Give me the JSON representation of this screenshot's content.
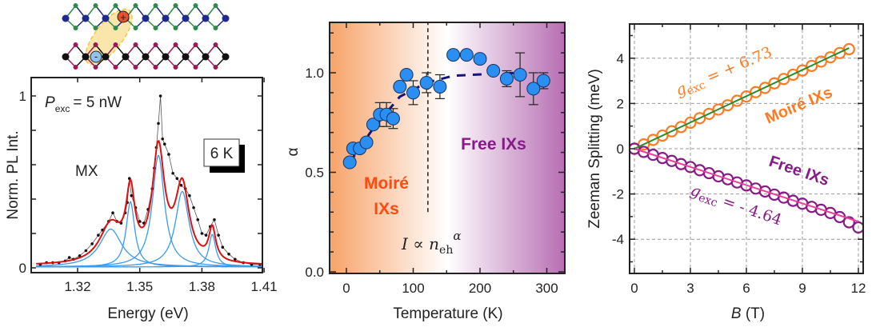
{
  "colors": {
    "metal_top": "#1f2a8c",
    "chalcogen_top": "#2e8b4a",
    "metal_bottom": "#111111",
    "chalcogen_bottom": "#9a1a5a",
    "exciton_ellipse": "#f5c842",
    "hole": "#e8502a",
    "electron": "#8fc3ea",
    "pl_data": "#111111",
    "pl_fit": "#e01010",
    "pl_components": "#3a9af0",
    "moire_region": "#f7a36a",
    "free_region": "#b76fb3",
    "alpha_points": "#2a8ff0",
    "alpha_fit": "#151580",
    "moire_label": "#ff4a10",
    "free_label": "#861a86",
    "moire_zeeman": "#ff7a20",
    "moire_fit": "#2a8a2a",
    "free_zeeman": "#861a86",
    "free_fit": "#e8409a"
  },
  "schematic": {
    "hole_symbol": "+",
    "electron_symbol": "-"
  },
  "chart_data": [
    {
      "type": "line",
      "ylabel": "Norm. PL Int.",
      "xlabel": "Energy (eV)",
      "xlim": [
        1.3,
        1.41
      ],
      "ylim": [
        0,
        1.05
      ],
      "xticks": [
        "1.32",
        "1.35",
        "1.38",
        "1.41"
      ],
      "yticks": [
        "0",
        "1"
      ],
      "annotations": {
        "power_symbol": "P",
        "power_sub": "exc",
        "power_value": "= 5 nW",
        "peak_label": "MX",
        "temperature_badge": "6 K"
      },
      "measured": {
        "x": [
          1.302,
          1.305,
          1.308,
          1.311,
          1.314,
          1.316,
          1.318,
          1.321,
          1.324,
          1.327,
          1.33,
          1.332,
          1.335,
          1.337,
          1.339,
          1.341,
          1.343,
          1.344,
          1.345,
          1.346,
          1.348,
          1.35,
          1.352,
          1.354,
          1.356,
          1.357,
          1.358,
          1.359,
          1.36,
          1.361,
          1.362,
          1.364,
          1.366,
          1.368,
          1.37,
          1.372,
          1.374,
          1.376,
          1.378,
          1.38,
          1.382,
          1.384,
          1.386,
          1.388,
          1.39,
          1.393,
          1.396,
          1.4,
          1.404,
          1.408
        ],
        "y": [
          0.02,
          0.03,
          0.03,
          0.03,
          0.04,
          0.06,
          0.05,
          0.07,
          0.1,
          0.14,
          0.19,
          0.22,
          0.27,
          0.32,
          0.27,
          0.26,
          0.32,
          0.38,
          0.52,
          0.42,
          0.35,
          0.27,
          0.26,
          0.34,
          0.46,
          0.58,
          0.7,
          0.84,
          1.0,
          0.75,
          0.72,
          0.66,
          0.55,
          0.52,
          0.48,
          0.46,
          0.42,
          0.35,
          0.28,
          0.2,
          0.19,
          0.24,
          0.28,
          0.19,
          0.12,
          0.08,
          0.05,
          0.03,
          0.02,
          0.02
        ]
      },
      "fit_components": [
        {
          "center": 1.336,
          "amplitude": 0.22,
          "hwhm": 0.0065
        },
        {
          "center": 1.3455,
          "amplitude": 0.38,
          "hwhm": 0.0025
        },
        {
          "center": 1.359,
          "amplitude": 0.65,
          "hwhm": 0.0035
        },
        {
          "center": 1.3705,
          "amplitude": 0.44,
          "hwhm": 0.004
        },
        {
          "center": 1.385,
          "amplitude": 0.19,
          "hwhm": 0.002
        }
      ]
    },
    {
      "type": "scatter",
      "ylabel": "α",
      "xlabel": "Temperature (K)",
      "xlim": [
        -25,
        327
      ],
      "ylim": [
        0,
        1.25
      ],
      "xticks": [
        "0",
        "100",
        "200",
        "300"
      ],
      "yticks": [
        "0.0",
        "0.5",
        "1.0"
      ],
      "regions": {
        "moire_line1": "Moiré",
        "moire_line2": "IXs",
        "free": "Free IXs",
        "boundary_T": 122
      },
      "formula": {
        "lhs": "I",
        "prop": " ∝ ",
        "n": "n",
        "sub": "eh",
        "sup": "α"
      },
      "points": {
        "x": [
          5,
          10,
          20,
          30,
          40,
          50,
          60,
          70,
          80,
          90,
          100,
          120,
          140,
          160,
          180,
          200,
          220,
          240,
          260,
          280,
          295
        ],
        "y": [
          0.55,
          0.62,
          0.62,
          0.65,
          0.74,
          0.79,
          0.79,
          0.77,
          0.93,
          0.99,
          0.9,
          0.95,
          0.93,
          1.09,
          1.09,
          1.07,
          1.01,
          0.97,
          0.99,
          0.92,
          0.96
        ],
        "err": [
          0.02,
          0.02,
          0.02,
          0.02,
          0.02,
          0.06,
          0.06,
          0.05,
          0.02,
          0.02,
          0.06,
          0.05,
          0.06,
          0.01,
          0.01,
          0.01,
          0.01,
          0.04,
          0.11,
          0.08,
          0.04
        ]
      },
      "fit": {
        "x": [
          5,
          40,
          80,
          120,
          160,
          220,
          265
        ],
        "y": [
          0.55,
          0.72,
          0.88,
          0.95,
          0.985,
          0.995,
          1.0
        ]
      }
    },
    {
      "type": "scatter",
      "ylabel": "Zeeman Splitting (meV)",
      "xlabel_symbol": "B",
      "xlabel_unit": " (T)",
      "xlim": [
        -0.25,
        12.25
      ],
      "ylim": [
        -5.5,
        5.5
      ],
      "grid": true,
      "xticks": [
        "0",
        "3",
        "6",
        "9",
        "12"
      ],
      "yticks": [
        "-4",
        "-2",
        "0",
        "2",
        "4"
      ],
      "series": [
        {
          "name": "Moiré IXs",
          "g_symbol": "g",
          "g_sub": "exc",
          "g_text": " = + 6.73",
          "x": [
            0,
            0.5,
            1,
            1.5,
            2,
            2.5,
            3,
            3.5,
            4,
            4.5,
            5,
            5.5,
            6,
            6.5,
            7,
            7.5,
            8,
            8.5,
            9,
            9.5,
            10,
            10.5,
            11,
            11.5
          ],
          "y": [
            0,
            0.19,
            0.39,
            0.58,
            0.77,
            0.96,
            1.15,
            1.35,
            1.54,
            1.73,
            1.92,
            2.12,
            2.31,
            2.5,
            2.69,
            2.89,
            3.08,
            3.27,
            3.46,
            3.66,
            3.85,
            4.04,
            4.23,
            4.4
          ],
          "fit": {
            "x": [
              0,
              11.5
            ],
            "y": [
              0,
              4.45
            ]
          }
        },
        {
          "name": "Free IXs",
          "g_symbol": "g",
          "g_sub": "exc",
          "g_text": " = - 4.64",
          "x": [
            0,
            0.5,
            1,
            1.5,
            2,
            2.5,
            3,
            3.5,
            4,
            4.5,
            5,
            5.5,
            6,
            6.5,
            7,
            7.5,
            8,
            8.5,
            9,
            9.5,
            10,
            10.5,
            11,
            11.5,
            12
          ],
          "y": [
            0,
            -0.14,
            -0.27,
            -0.41,
            -0.54,
            -0.68,
            -0.81,
            -0.95,
            -1.08,
            -1.22,
            -1.35,
            -1.49,
            -1.62,
            -1.76,
            -1.89,
            -2.03,
            -2.16,
            -2.3,
            -2.43,
            -2.57,
            -2.7,
            -2.84,
            -3.02,
            -3.25,
            -3.48
          ],
          "fit": {
            "x": [
              0,
              12
            ],
            "y": [
              0,
              -3.22
            ]
          }
        }
      ]
    }
  ]
}
